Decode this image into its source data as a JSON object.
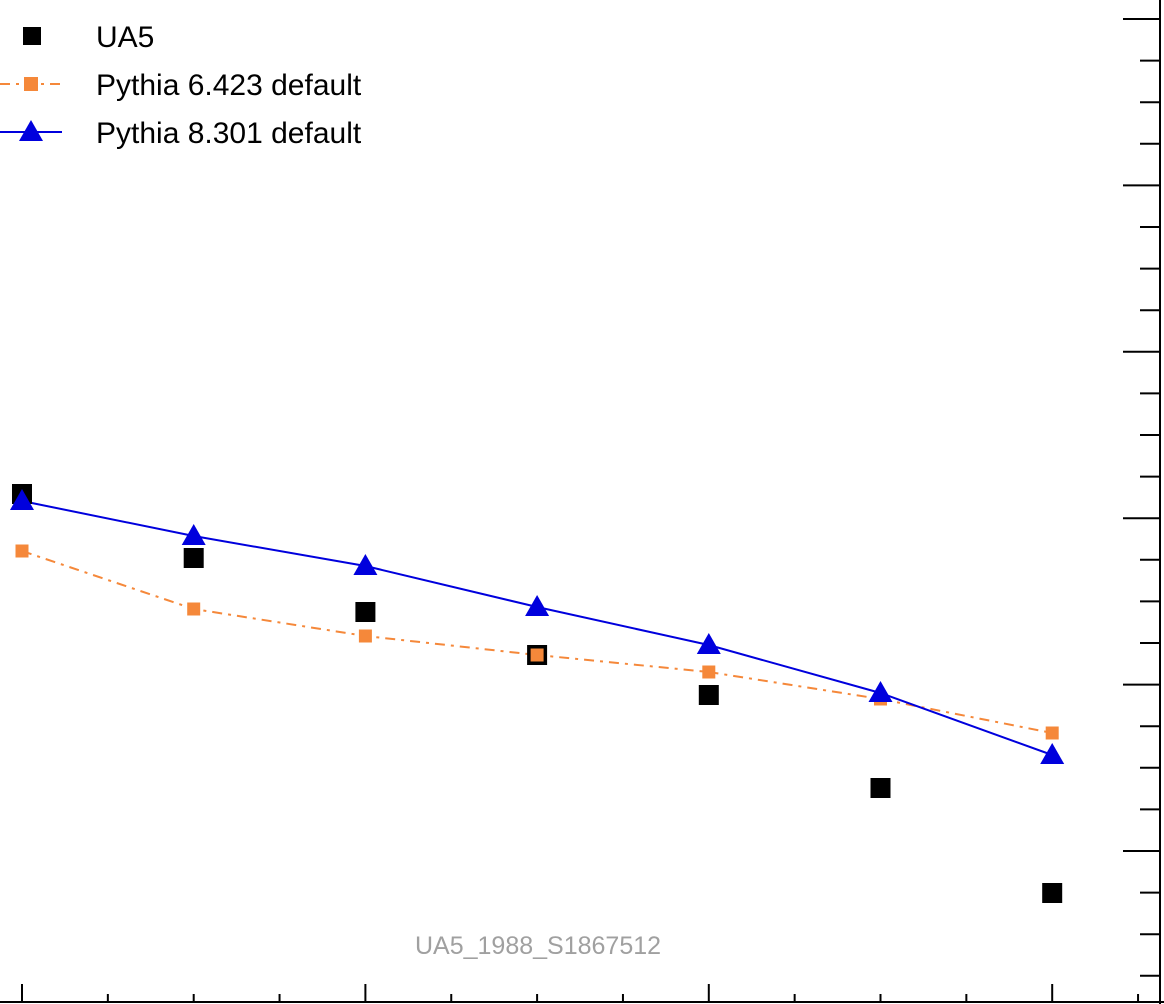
{
  "chart_data": {
    "type": "scatter",
    "title": "",
    "xlabel": "",
    "ylabel": "",
    "watermark": "UA5_1988_S1867512",
    "legend_placement": "top-left",
    "grid": false,
    "x": [
      1,
      2,
      3,
      4,
      5,
      6,
      7
    ],
    "series": [
      {
        "name": "UA5",
        "style": "markers",
        "marker": "square",
        "color": "#000000",
        "values": [
          506,
          442,
          388,
          345,
          305,
          212,
          107
        ]
      },
      {
        "name": "Pythia 6.423 default",
        "style": "dash-dot",
        "marker": "square",
        "color": "#f5883a",
        "values": [
          449,
          391,
          364,
          345,
          328,
          301,
          267
        ]
      },
      {
        "name": "Pythia 8.301 default",
        "style": "solid",
        "marker": "triangle",
        "color": "#0000dd",
        "values": [
          499,
          464,
          434,
          393,
          355,
          307,
          245
        ]
      }
    ]
  }
}
